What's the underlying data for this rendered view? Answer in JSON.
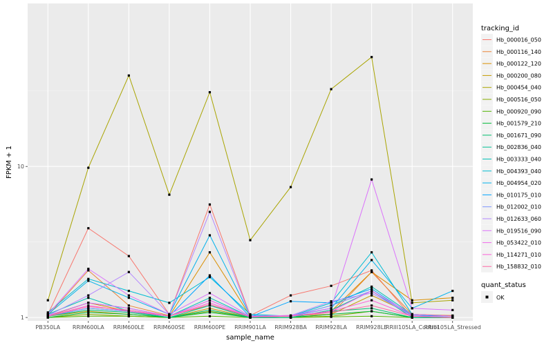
{
  "chart_data": {
    "type": "line",
    "xlabel": "sample_name",
    "ylabel": "FPKM + 1",
    "y_scale": "log",
    "ylim": [
      0.95,
      120
    ],
    "y_ticks": [
      {
        "value": 1,
        "label": "1"
      },
      {
        "value": 10,
        "label": "10"
      }
    ],
    "grid": true,
    "legend_position": "right",
    "categories": [
      "PB350LA",
      "RRIM600LA",
      "RRIM600LE",
      "RRIM600SE",
      "RRIM600PE",
      "RRIM901LA",
      "RRIM928BA",
      "RRIM928LA",
      "RRIM928LE",
      "RRIII105LA_Control",
      "RRIII105LA_Stressed"
    ],
    "legend": {
      "title": "tracking_id",
      "quant_title": "quant_status",
      "quant_label": "OK"
    },
    "series": [
      {
        "name": "Hb_000016_050",
        "color": "#F8766D",
        "values": [
          1.05,
          3.9,
          2.55,
          1.05,
          5.6,
          1.03,
          1.4,
          1.62,
          2.05,
          1.0,
          1.0
        ]
      },
      {
        "name": "Hb_000116_140",
        "color": "#EB8335",
        "values": [
          1.03,
          2.05,
          1.2,
          1.03,
          1.2,
          1.02,
          1.03,
          1.05,
          2.0,
          1.05,
          1.03
        ]
      },
      {
        "name": "Hb_000122_120",
        "color": "#DA8F00",
        "values": [
          1.02,
          1.25,
          1.1,
          1.02,
          2.7,
          1.02,
          1.02,
          1.1,
          2.0,
          1.3,
          1.35
        ]
      },
      {
        "name": "Hb_000200_080",
        "color": "#C49A00",
        "values": [
          1.02,
          1.1,
          1.05,
          1.0,
          1.15,
          1.0,
          1.0,
          1.05,
          1.4,
          1.05,
          1.02
        ]
      },
      {
        "name": "Hb_000454_040",
        "color": "#A9A400",
        "values": [
          1.3,
          9.8,
          40.0,
          6.5,
          31.0,
          3.25,
          7.3,
          32.5,
          53.0,
          1.25,
          1.3
        ]
      },
      {
        "name": "Hb_000516_050",
        "color": "#86AC00",
        "values": [
          1.0,
          1.05,
          1.02,
          1.0,
          1.1,
          1.0,
          1.0,
          1.02,
          1.1,
          1.0,
          1.0
        ]
      },
      {
        "name": "Hb_000920_090",
        "color": "#53B400",
        "values": [
          1.0,
          1.02,
          1.02,
          1.0,
          1.02,
          1.0,
          1.0,
          1.01,
          1.02,
          1.0,
          1.0
        ]
      },
      {
        "name": "Hb_001579_210",
        "color": "#00BA38",
        "values": [
          1.0,
          1.08,
          1.05,
          1.0,
          1.08,
          1.0,
          1.0,
          1.05,
          1.1,
          1.0,
          1.0
        ]
      },
      {
        "name": "Hb_001671_090",
        "color": "#00BE6D",
        "values": [
          1.02,
          1.12,
          1.08,
          1.0,
          1.12,
          1.0,
          1.0,
          1.1,
          1.15,
          1.0,
          1.0
        ]
      },
      {
        "name": "Hb_002836_040",
        "color": "#00C094",
        "values": [
          1.02,
          1.15,
          1.1,
          1.0,
          1.2,
          1.0,
          1.0,
          1.12,
          1.5,
          1.0,
          1.0
        ]
      },
      {
        "name": "Hb_003333_040",
        "color": "#00C0B5",
        "values": [
          1.05,
          1.35,
          1.1,
          1.02,
          1.35,
          1.01,
          1.02,
          1.2,
          1.6,
          1.05,
          1.02
        ]
      },
      {
        "name": "Hb_004393_040",
        "color": "#00BCD3",
        "values": [
          1.08,
          1.8,
          1.5,
          1.25,
          1.85,
          1.05,
          1.02,
          1.25,
          2.7,
          1.05,
          1.02
        ]
      },
      {
        "name": "Hb_004954_020",
        "color": "#00B2EC",
        "values": [
          1.05,
          1.75,
          1.35,
          1.05,
          3.5,
          1.03,
          1.02,
          1.15,
          2.4,
          1.15,
          1.5
        ]
      },
      {
        "name": "Hb_010175_010",
        "color": "#00A5FF",
        "values": [
          1.03,
          1.25,
          1.15,
          1.02,
          1.9,
          1.01,
          1.28,
          1.25,
          1.55,
          1.03,
          1.02
        ]
      },
      {
        "name": "Hb_012002_010",
        "color": "#7C96FF",
        "values": [
          1.02,
          1.15,
          1.1,
          1.02,
          1.3,
          1.01,
          1.02,
          1.2,
          1.5,
          1.02,
          1.0
        ]
      },
      {
        "name": "Hb_012633_060",
        "color": "#B385FF",
        "values": [
          1.03,
          1.4,
          2.0,
          1.05,
          5.0,
          1.02,
          1.03,
          1.28,
          1.45,
          1.03,
          1.0
        ]
      },
      {
        "name": "Hb_019516_090",
        "color": "#DB72FB",
        "values": [
          1.05,
          2.1,
          1.4,
          1.05,
          1.45,
          1.02,
          1.03,
          1.15,
          8.2,
          1.15,
          1.12
        ]
      },
      {
        "name": "Hb_053422_010",
        "color": "#EF67EB",
        "values": [
          1.03,
          1.25,
          1.15,
          1.02,
          1.3,
          1.01,
          1.02,
          1.1,
          1.5,
          1.05,
          1.02
        ]
      },
      {
        "name": "Hb_114271_010",
        "color": "#FB61D7",
        "values": [
          1.02,
          1.2,
          1.1,
          1.02,
          1.25,
          1.01,
          1.02,
          1.1,
          1.3,
          1.02,
          1.0
        ]
      },
      {
        "name": "Hb_158832_010",
        "color": "#FF67A4",
        "values": [
          1.02,
          1.18,
          1.12,
          1.02,
          1.22,
          1.01,
          1.02,
          1.08,
          1.2,
          1.02,
          1.0
        ]
      }
    ]
  }
}
